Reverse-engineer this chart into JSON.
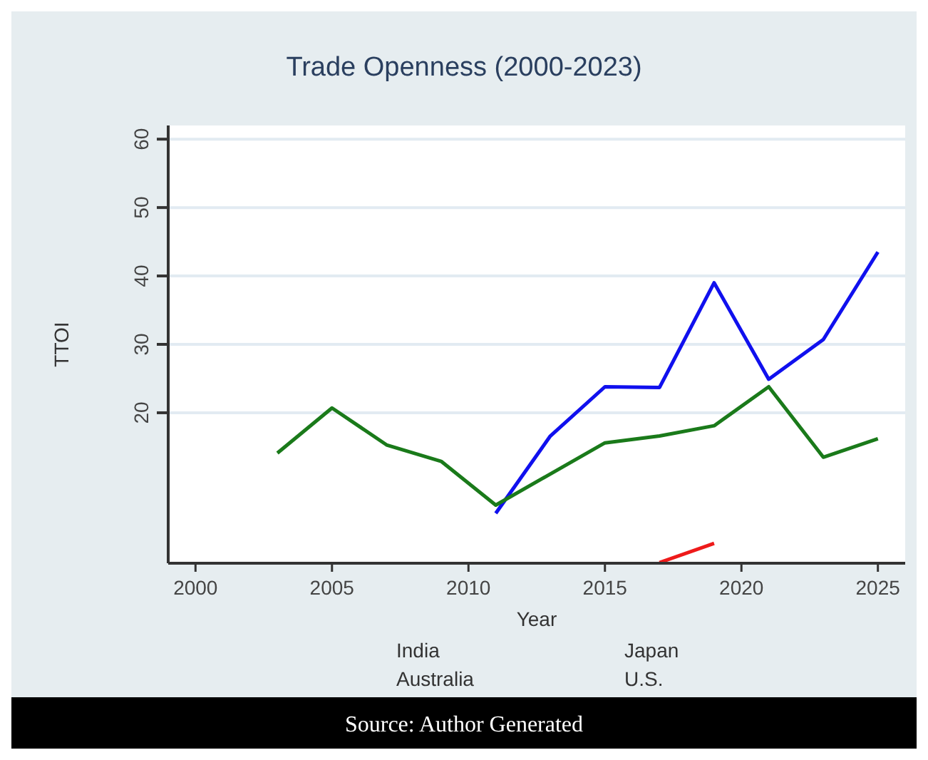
{
  "chart_data": {
    "type": "line",
    "title": "Trade Openness (2000-2023)",
    "xlabel": "Year",
    "ylabel": "TTOI",
    "series": [
      {
        "color": "#1010ee",
        "x": [
          2011,
          2013,
          2015,
          2017,
          2019,
          2021,
          2023,
          2025
        ],
        "values": [
          5.3,
          16.6,
          23.8,
          23.7,
          39.0,
          24.9,
          30.7,
          43.5
        ]
      },
      {
        "color": "#1a7a1a",
        "x": [
          2003,
          2005,
          2007,
          2009,
          2011,
          2015,
          2017,
          2019,
          2021,
          2023,
          2025
        ],
        "values": [
          14.1,
          20.7,
          15.3,
          12.9,
          6.5,
          15.6,
          16.6,
          18.1,
          23.8,
          13.5,
          16.2
        ]
      },
      {
        "color": "#ee1a1a",
        "x": [
          2017,
          2019
        ],
        "values": [
          -1.9,
          0.9
        ]
      }
    ],
    "xlim": [
      1999,
      2026
    ],
    "xticks": [
      2000,
      2005,
      2010,
      2015,
      2020,
      2025
    ],
    "ylim": [
      -2,
      62
    ],
    "yticks": [
      20,
      30,
      40,
      50,
      60
    ],
    "grid": "y",
    "annotations": [
      "India",
      "Australia",
      "Japan",
      "U.S.",
      "Source: Author Generated"
    ]
  }
}
